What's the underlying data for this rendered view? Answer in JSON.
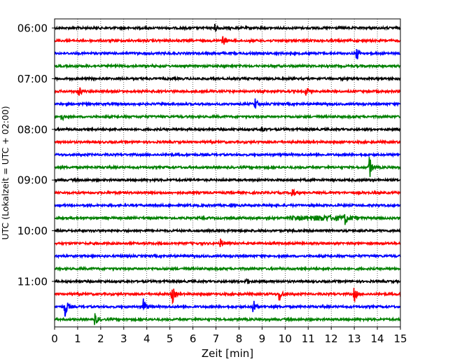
{
  "chart_data": {
    "type": "line",
    "title": "",
    "xlabel": "Zeit  [min]",
    "ylabel": "UTC (Lokalzeit = UTC + 02:00)",
    "xlim": [
      0,
      15
    ],
    "x_ticks": [
      "0",
      "1",
      "2",
      "3",
      "4",
      "5",
      "6",
      "7",
      "8",
      "9",
      "10",
      "11",
      "12",
      "13",
      "14",
      "15"
    ],
    "y_ticks": [
      "06:00",
      "07:00",
      "08:00",
      "09:00",
      "10:00",
      "11:00"
    ],
    "grid": "vertical dotted at each minute",
    "trace_interval_minutes": 15,
    "trace_colors": [
      "#000000",
      "#ff0000",
      "#0000ff",
      "#008000"
    ],
    "traces": [
      {
        "start": "06:00",
        "events": [
          {
            "t": 6.9,
            "amp": 0.35
          }
        ]
      },
      {
        "start": "06:15",
        "events": [
          {
            "t": 7.3,
            "amp": 0.3
          }
        ]
      },
      {
        "start": "06:30",
        "events": [
          {
            "t": 13.1,
            "amp": 0.45
          }
        ]
      },
      {
        "start": "06:45",
        "events": []
      },
      {
        "start": "07:00",
        "events": []
      },
      {
        "start": "07:15",
        "events": [
          {
            "t": 1.05,
            "amp": 0.35
          },
          {
            "t": 10.9,
            "amp": 0.3
          }
        ]
      },
      {
        "start": "07:30",
        "events": [
          {
            "t": 8.7,
            "amp": 0.35
          }
        ]
      },
      {
        "start": "07:45",
        "events": [
          {
            "t": 0.3,
            "amp": 0.25
          }
        ]
      },
      {
        "start": "08:00",
        "events": [
          {
            "t": 9.0,
            "amp": 0.25
          }
        ]
      },
      {
        "start": "08:15",
        "events": []
      },
      {
        "start": "08:30",
        "events": []
      },
      {
        "start": "08:45",
        "events": [
          {
            "t": 13.65,
            "amp": 0.75
          }
        ]
      },
      {
        "start": "09:00",
        "events": []
      },
      {
        "start": "09:15",
        "events": [
          {
            "t": 10.3,
            "amp": 0.35
          }
        ]
      },
      {
        "start": "09:30",
        "events": []
      },
      {
        "start": "09:45",
        "events": [
          {
            "t": 12.6,
            "amp": 0.3
          }
        ]
      },
      {
        "start": "10:00",
        "events": []
      },
      {
        "start": "10:15",
        "events": [
          {
            "t": 7.2,
            "amp": 0.25
          }
        ]
      },
      {
        "start": "10:30",
        "events": []
      },
      {
        "start": "10:45",
        "events": []
      },
      {
        "start": "11:00",
        "events": [
          {
            "t": 8.3,
            "amp": 0.25
          }
        ]
      },
      {
        "start": "11:15",
        "events": [
          {
            "t": 5.1,
            "amp": 0.6
          },
          {
            "t": 9.75,
            "amp": 0.55
          },
          {
            "t": 13.0,
            "amp": 0.45
          }
        ]
      },
      {
        "start": "11:30",
        "events": [
          {
            "t": 0.45,
            "amp": 0.7
          },
          {
            "t": 3.85,
            "amp": 0.6
          },
          {
            "t": 8.6,
            "amp": 0.55
          }
        ]
      },
      {
        "start": "11:45",
        "events": [
          {
            "t": 1.75,
            "amp": 0.4
          }
        ]
      }
    ],
    "noise_burst": {
      "trace_start": "09:45",
      "from": 10.2,
      "to": 13.2,
      "amp": 0.35
    }
  }
}
